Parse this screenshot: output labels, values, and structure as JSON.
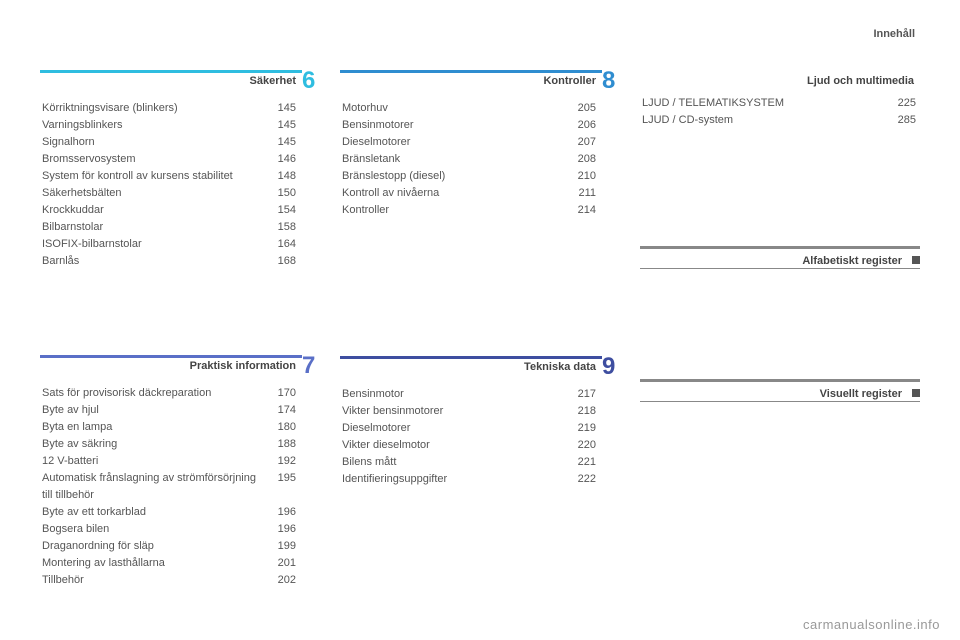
{
  "meta": {
    "header_label": "Innehåll",
    "watermark": "carmanualsonline.info"
  },
  "columns": [
    {
      "sections": [
        {
          "number": "6",
          "title": "Säkerhet",
          "rule_color": "#2fbde0",
          "num_color": "#2fbde0",
          "entries": [
            {
              "label": "Körriktningsvisare (blinkers)",
              "page": "145"
            },
            {
              "label": "Varningsblinkers",
              "page": "145"
            },
            {
              "label": "Signalhorn",
              "page": "145"
            },
            {
              "label": "Bromsservosystem",
              "page": "146"
            },
            {
              "label": "System för kontroll av kursens stabilitet",
              "page": "148"
            },
            {
              "label": "Säkerhetsbälten",
              "page": "150"
            },
            {
              "label": "Krockkuddar",
              "page": "154"
            },
            {
              "label": "Bilbarnstolar",
              "page": "158"
            },
            {
              "label": "ISOFIX-bilbarnstolar",
              "page": "164"
            },
            {
              "label": "Barnlås",
              "page": "168"
            }
          ]
        },
        {
          "number": "7",
          "title": "Praktisk information",
          "rule_color": "#5a6fc7",
          "num_color": "#5a6fc7",
          "entries": [
            {
              "label": "Sats för provisorisk däckreparation",
              "page": "170"
            },
            {
              "label": "Byte av hjul",
              "page": "174"
            },
            {
              "label": "Byta en lampa",
              "page": "180"
            },
            {
              "label": "Byte av säkring",
              "page": "188"
            },
            {
              "label": "12 V-batteri",
              "page": "192"
            },
            {
              "label": "Automatisk frånslagning av strömförsörjning till tillbehör",
              "page": "195"
            },
            {
              "label": "Byte av ett torkarblad",
              "page": "196"
            },
            {
              "label": "Bogsera bilen",
              "page": "196"
            },
            {
              "label": "Draganordning för släp",
              "page": "199"
            },
            {
              "label": "Montering av lasthållarna",
              "page": "201"
            },
            {
              "label": "Tillbehör",
              "page": "202"
            }
          ]
        }
      ]
    },
    {
      "sections": [
        {
          "number": "8",
          "title": "Kontroller",
          "rule_color": "#2f8dd0",
          "num_color": "#2f8dd0",
          "entries": [
            {
              "label": "Motorhuv",
              "page": "205"
            },
            {
              "label": "Bensinmotorer",
              "page": "206"
            },
            {
              "label": "Dieselmotorer",
              "page": "207"
            },
            {
              "label": "Bränsletank",
              "page": "208"
            },
            {
              "label": "Bränslestopp (diesel)",
              "page": "210"
            },
            {
              "label": "Kontroll av nivåerna",
              "page": "211"
            },
            {
              "label": "Kontroller",
              "page": "214"
            }
          ]
        },
        {
          "number": "9",
          "title": "Tekniska data",
          "rule_color": "#3e4ea0",
          "num_color": "#3e4ea0",
          "entries": [
            {
              "label": "Bensinmotor",
              "page": "217"
            },
            {
              "label": "Vikter bensinmotorer",
              "page": "218"
            },
            {
              "label": "Dieselmotorer",
              "page": "219"
            },
            {
              "label": "Vikter dieselmotor",
              "page": "220"
            },
            {
              "label": "Bilens mått",
              "page": "221"
            },
            {
              "label": "Identifieringsuppgifter",
              "page": "222"
            }
          ]
        }
      ]
    },
    {
      "sections": [
        {
          "title": "Ljud och multimedia",
          "type": "plain",
          "entries": [
            {
              "label": "LJUD / TELEMATIKSYSTEM",
              "page": "225"
            },
            {
              "label": "LJUD / CD-system",
              "page": "285"
            }
          ]
        },
        {
          "title": "Alfabetiskt register",
          "type": "index"
        },
        {
          "title": "Visuellt register",
          "type": "index"
        }
      ]
    }
  ]
}
